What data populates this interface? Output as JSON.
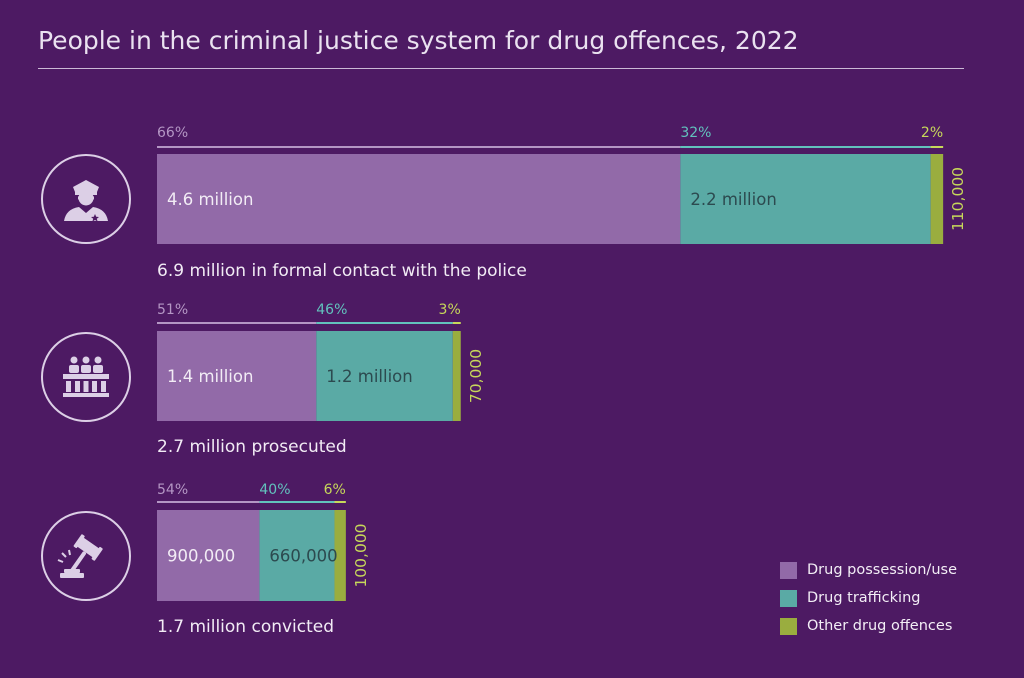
{
  "title": "People in the criminal justice system for drug offences, 2022",
  "colors": {
    "background": "#4d1a63",
    "possession": "#926aa8",
    "trafficking": "#5aaaa5",
    "other": "#9aad3f",
    "possession_text": "#b496c4",
    "trafficking_text": "#62c2bd",
    "other_text": "#c7d85a",
    "label_text": "#f2ecf5",
    "icon_stroke": "#dccfe6"
  },
  "legend": [
    {
      "key": "possession",
      "label": "Drug possession/use"
    },
    {
      "key": "trafficking",
      "label": "Drug trafficking"
    },
    {
      "key": "other",
      "label": "Other drug offences"
    }
  ],
  "chart_data": {
    "type": "bar",
    "orientation": "horizontal",
    "stacked": true,
    "title": "People in the criminal justice system for drug offences, 2022",
    "unit": "people",
    "series": [
      "Drug possession/use",
      "Drug trafficking",
      "Other drug offences"
    ],
    "stages": [
      {
        "name": "police-contact",
        "icon": "police-officer-icon",
        "total": 6900000,
        "caption": "6.9 million in formal contact with the police",
        "values": [
          4600000,
          2200000,
          110000
        ],
        "value_labels": [
          "4.6 million",
          "2.2 million",
          "110,000"
        ],
        "percents": [
          "66%",
          "32%",
          "2%"
        ]
      },
      {
        "name": "prosecuted",
        "icon": "courtroom-icon",
        "total": 2700000,
        "caption": "2.7 million prosecuted",
        "values": [
          1400000,
          1200000,
          70000
        ],
        "value_labels": [
          "1.4 million",
          "1.2 million",
          "70,000"
        ],
        "percents": [
          "51%",
          "46%",
          "3%"
        ]
      },
      {
        "name": "convicted",
        "icon": "gavel-icon",
        "total": 1700000,
        "caption": "1.7 million convicted",
        "values": [
          900000,
          660000,
          100000
        ],
        "value_labels": [
          "900,000",
          "660,000",
          "100,000"
        ],
        "percents": [
          "54%",
          "40%",
          "6%"
        ]
      }
    ]
  }
}
